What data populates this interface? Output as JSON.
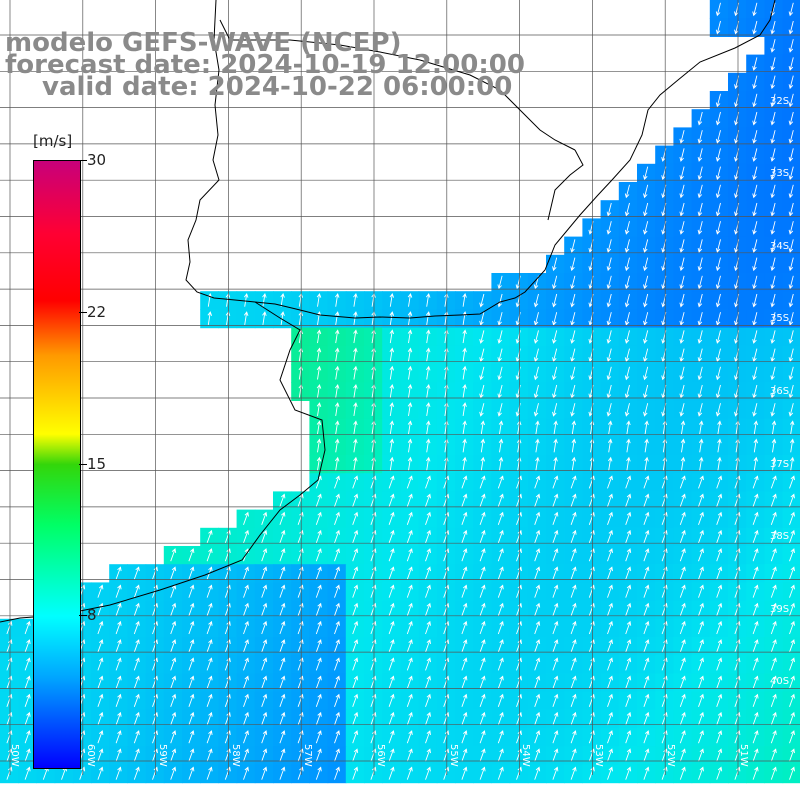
{
  "header": {
    "line1": "modelo GEFS-WAVE (NCEP)",
    "line2": "forecast date: 2024-10-19 12:00:00",
    "line3": "valid date: 2024-10-22 06:00:00"
  },
  "colorbar": {
    "unit": "[m/s]",
    "ticks": [
      "30",
      "22",
      "15",
      "8"
    ],
    "range": [
      0,
      30
    ],
    "colors": [
      "#0000ff",
      "#00a6ff",
      "#00ffff",
      "#00ff66",
      "#33d60a",
      "#ffff00",
      "#ff9900",
      "#ff0000",
      "#c8007a"
    ]
  },
  "grid": {
    "lat_labels": [
      "32S",
      "33S",
      "34S",
      "35S",
      "36S",
      "37S",
      "38S",
      "39S",
      "40S"
    ],
    "lon_labels": [
      "60W",
      "59W",
      "58W",
      "57W",
      "56W",
      "55W",
      "54W",
      "53W",
      "52W",
      "51W",
      "50W"
    ]
  },
  "map_style": {
    "land_color": "#ffffff",
    "coast_color": "#000000",
    "grid_color": "#555555",
    "arrow_color": "#ffffff"
  }
}
